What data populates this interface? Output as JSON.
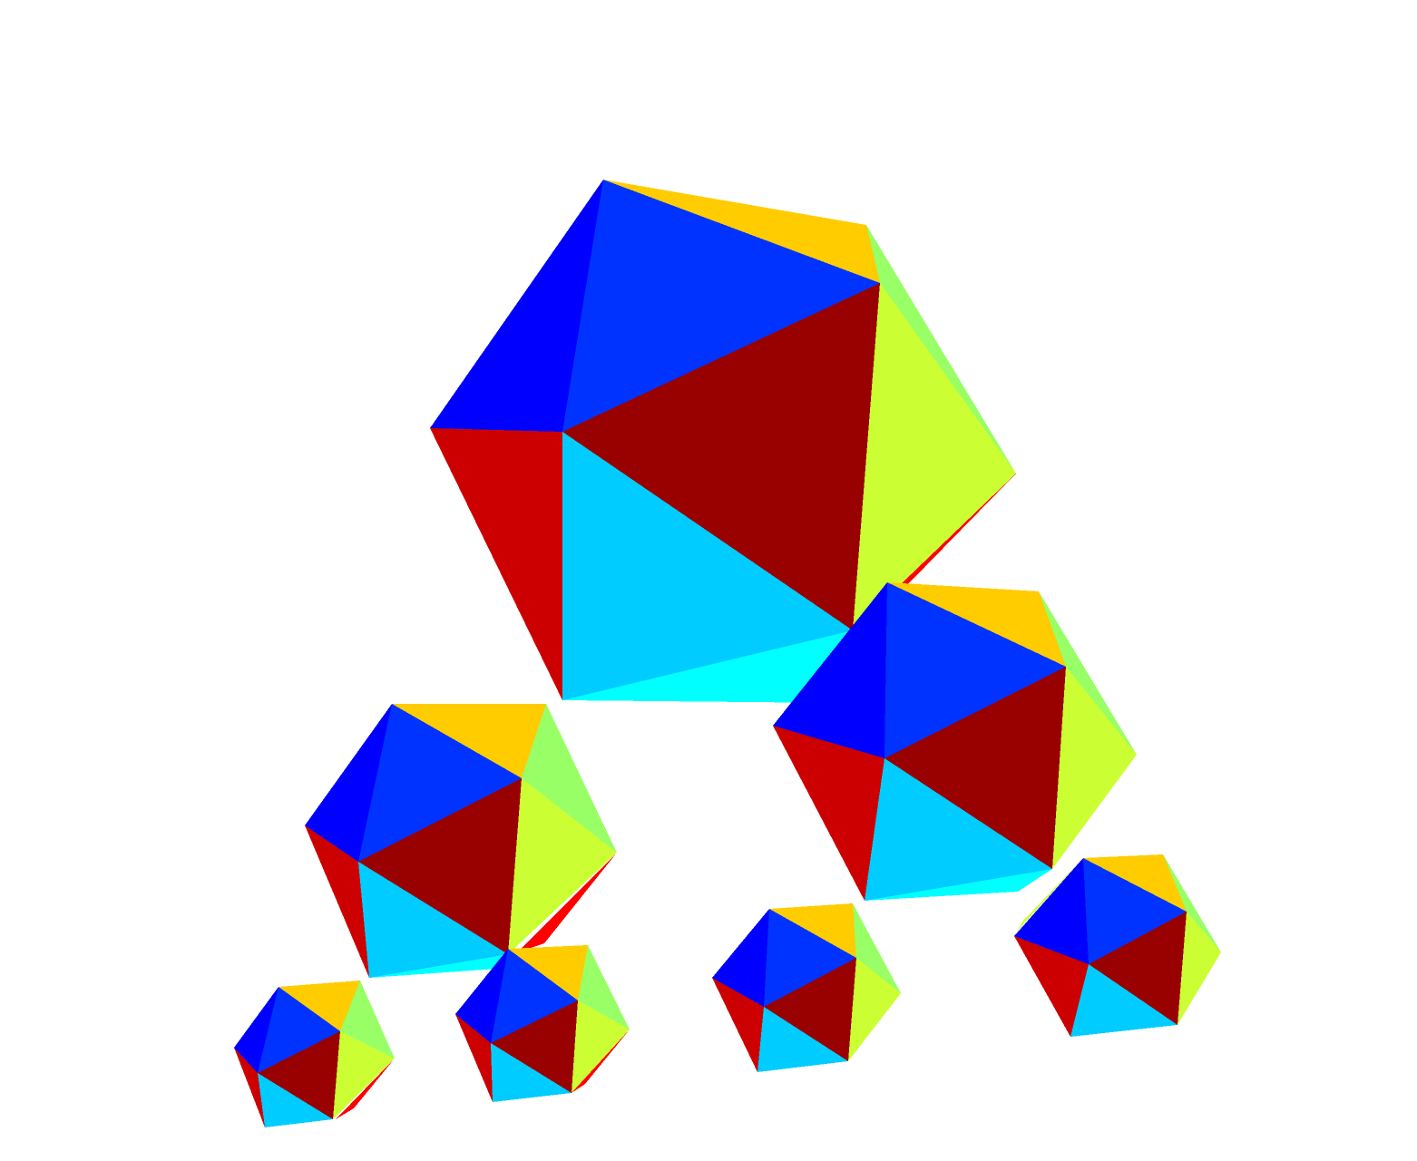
{
  "scene": {
    "description_kind": "rendered 3D icosahedra (no visible text)",
    "background": "#ffffff",
    "face_colors": {
      "blue_dark": "#0000ff",
      "blue": "#0033ff",
      "orange": "#ffcc00",
      "green_light": "#99ff66",
      "yellow_green": "#ccff33",
      "maroon": "#990000",
      "red": "#cc0000",
      "red_bright": "#ff0000",
      "cyan_sky": "#00ccff",
      "cyan": "#00ffff"
    },
    "icosahedra_count": 7
  }
}
